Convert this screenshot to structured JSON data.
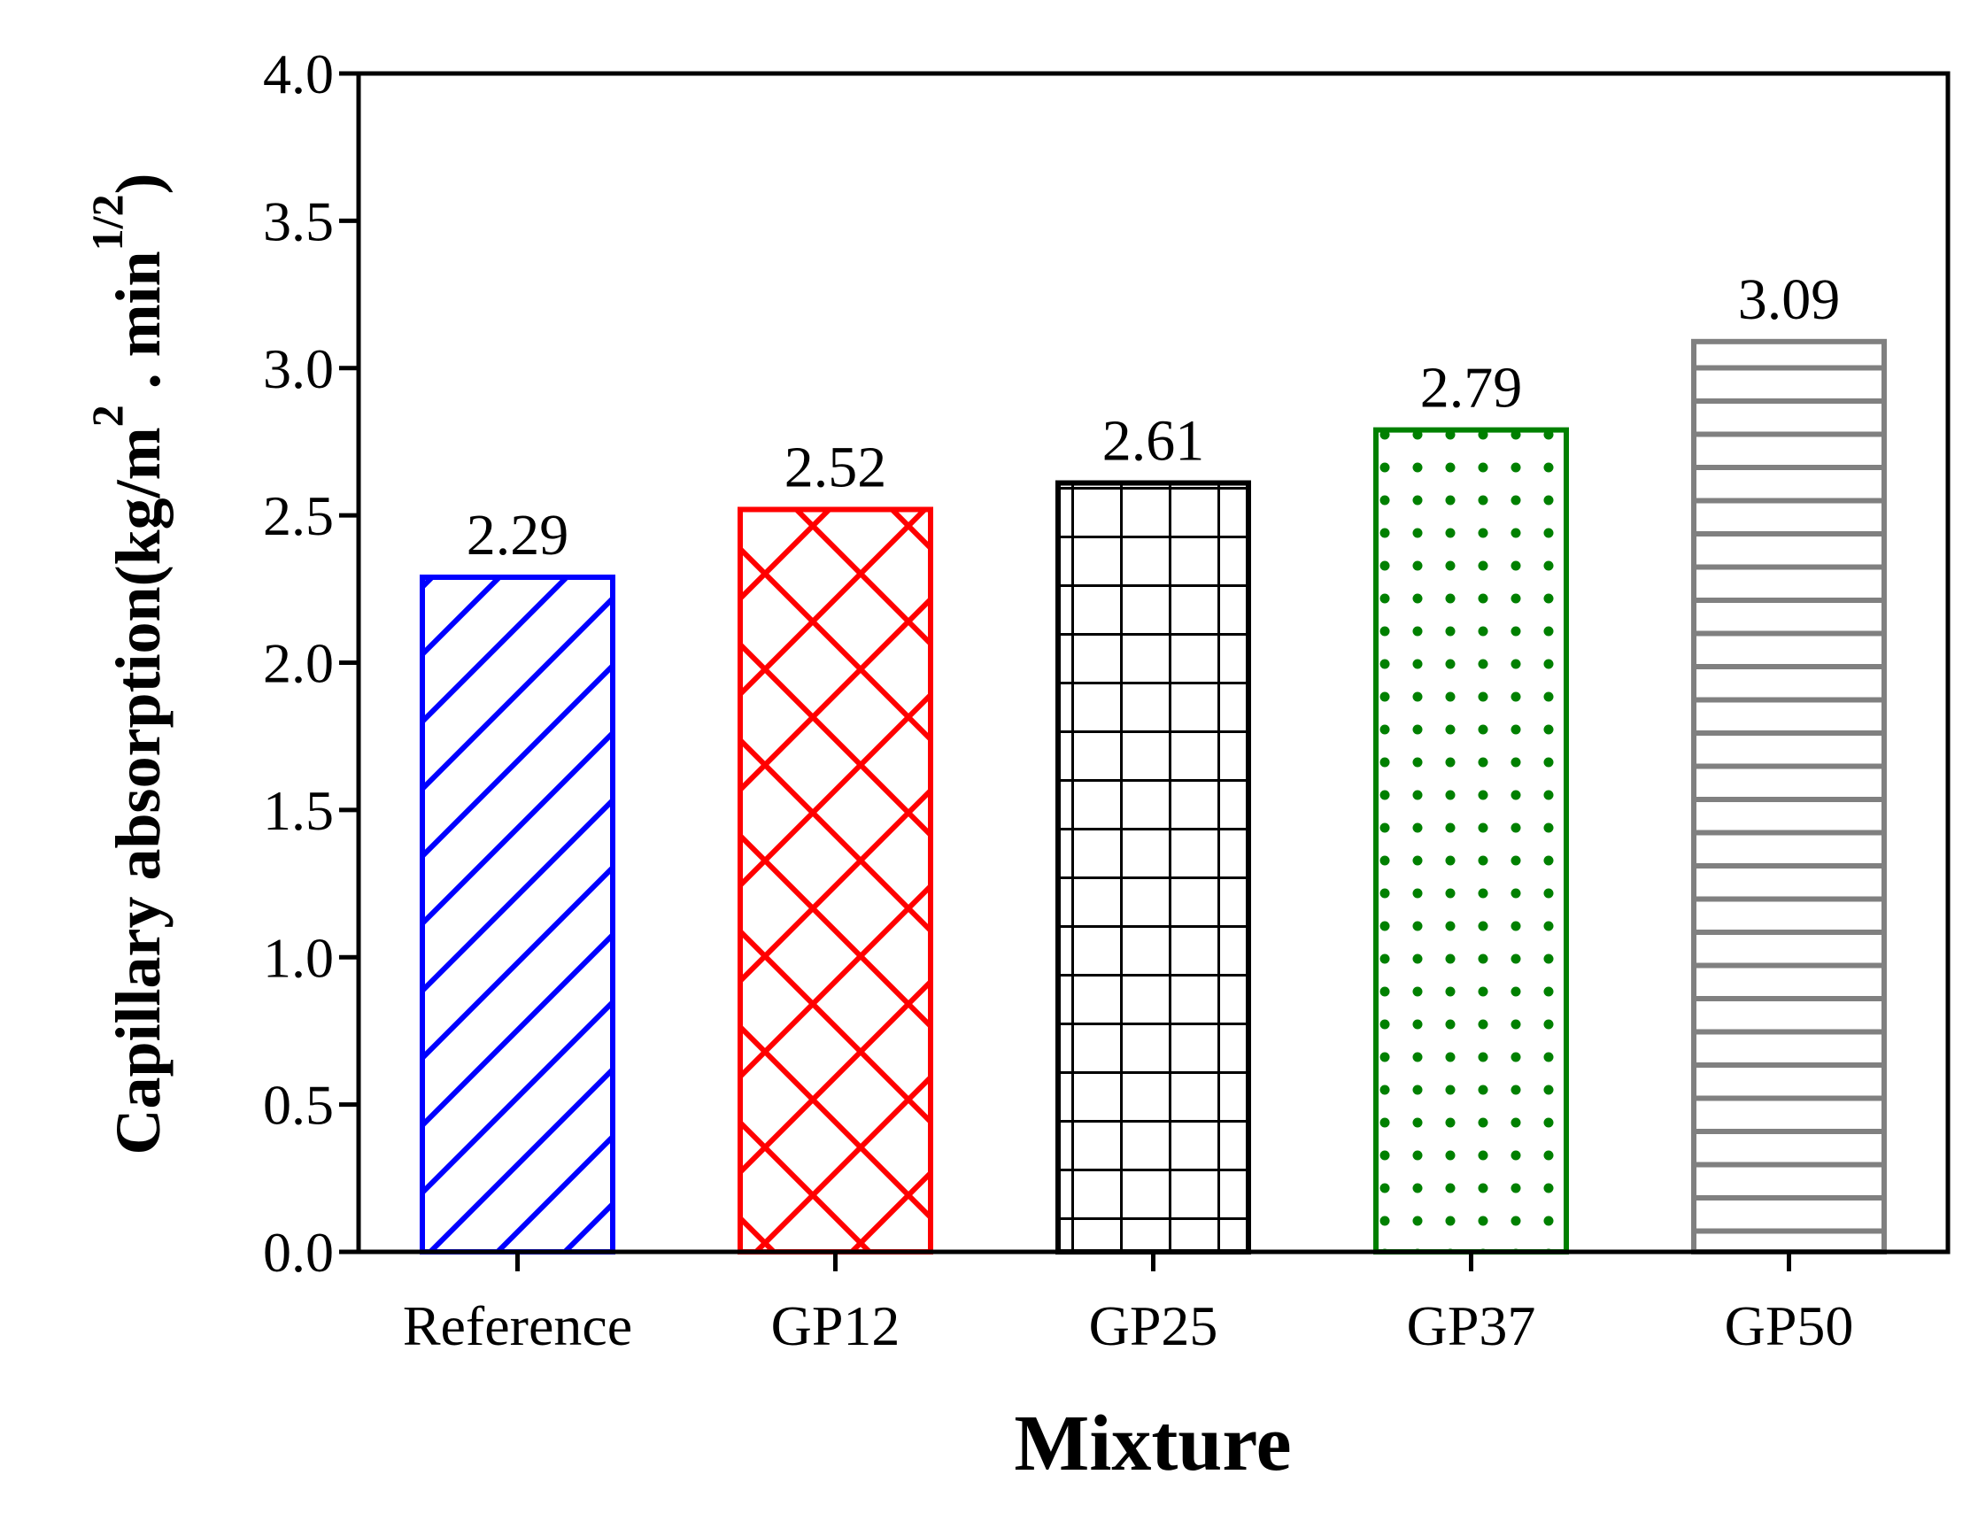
{
  "chart_data": {
    "type": "bar",
    "categories": [
      "Reference",
      "GP12",
      "GP25",
      "GP37",
      "GP50"
    ],
    "values": [
      2.29,
      2.52,
      2.61,
      2.79,
      3.09
    ],
    "value_labels": [
      "2.29",
      "2.52",
      "2.61",
      "2.79",
      "3.09"
    ],
    "colors": [
      "#0000ff",
      "#ff0000",
      "#000000",
      "#008000",
      "#808080"
    ],
    "patterns": [
      "diagonal-hatch",
      "cross-hatch",
      "grid",
      "dots",
      "horizontal-lines"
    ],
    "title": "",
    "xlabel": "Mixture",
    "ylabel": {
      "main": "Capillary absorption(kg/m",
      "sup1": "2",
      "mid": " . min",
      "sup2": "1/2",
      "end": ")"
    },
    "ylim": [
      0,
      4.0
    ],
    "yticks": [
      "0.0",
      "0.5",
      "1.0",
      "1.5",
      "2.0",
      "2.5",
      "3.0",
      "3.5",
      "4.0"
    ],
    "ytick_values": [
      0,
      0.5,
      1.0,
      1.5,
      2.0,
      2.5,
      3.0,
      3.5,
      4.0
    ],
    "grid": false,
    "legend": "none"
  }
}
